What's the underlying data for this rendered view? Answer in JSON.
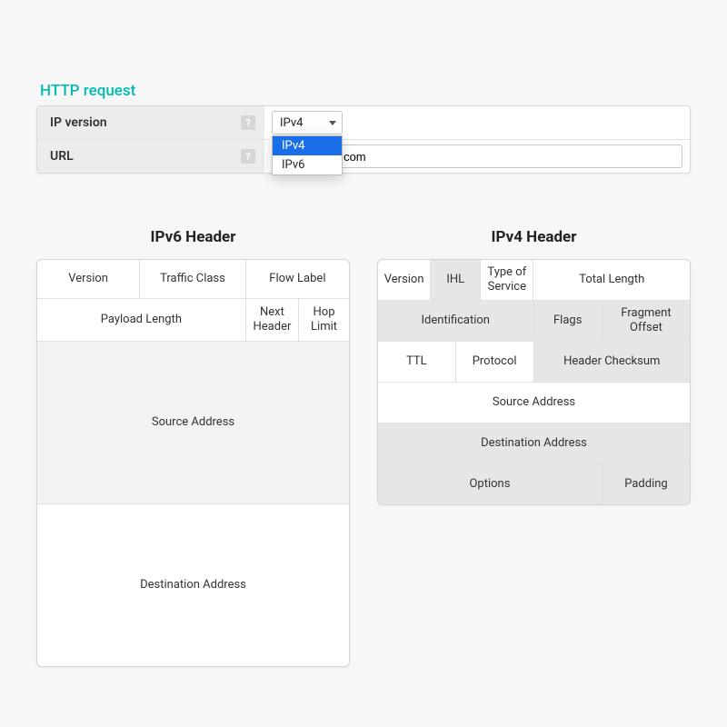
{
  "section_title": "HTTP request",
  "form": {
    "ip_version": {
      "label": "IP version",
      "help": "?",
      "selected": "IPv4",
      "options": [
        "IPv4",
        "IPv6"
      ]
    },
    "url": {
      "label": "URL",
      "help": "?",
      "value": "acticresorts.com"
    }
  },
  "ipv6": {
    "title": "IPv6 Header",
    "row1": {
      "version": "Version",
      "traffic_class": "Traffic Class",
      "flow_label": "Flow Label"
    },
    "row2": {
      "payload_length": "Payload Length",
      "next_header": "Next Header",
      "hop_limit": "Hop Limit"
    },
    "source": "Source Address",
    "destination": "Destination Address"
  },
  "ipv4": {
    "title": "IPv4 Header",
    "row1": {
      "version": "Version",
      "ihl": "IHL",
      "tos": "Type of Service",
      "total_length": "Total Length"
    },
    "row2": {
      "identification": "Identification",
      "flags": "Flags",
      "fragment_offset": "Fragment Offset"
    },
    "row3": {
      "ttl": "TTL",
      "protocol": "Protocol",
      "checksum": "Header Checksum"
    },
    "source": "Source Address",
    "destination": "Destination Address",
    "row6": {
      "options": "Options",
      "padding": "Padding"
    }
  },
  "colors": {
    "accent": "#00bdb0",
    "highlight": "#1a6fe8",
    "panel_border": "#d9d9d9",
    "cell_border": "#e1e1e1",
    "shade": "#e6e6e6",
    "light_shade": "#f3f3f3",
    "page_bg": "#f7f7f7"
  }
}
